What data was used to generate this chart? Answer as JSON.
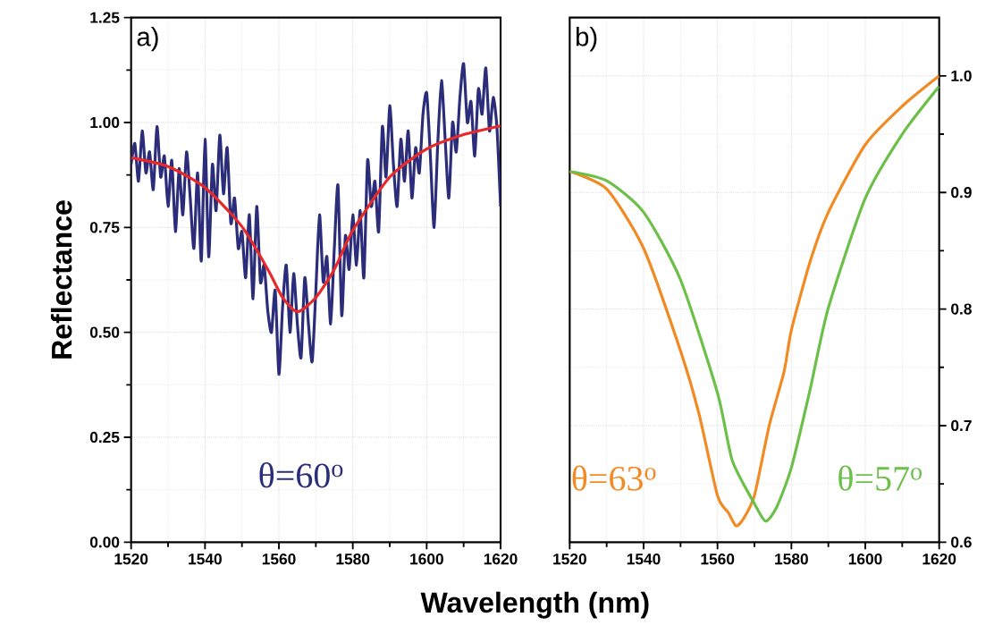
{
  "chart_data": [
    {
      "type": "line",
      "xlabel": "Wavelength (nm)",
      "ylabel": "Reflectance",
      "annotations": [
        "a)"
      ],
      "xlim": [
        1520,
        1620
      ],
      "xticks": [
        1520,
        1540,
        1560,
        1580,
        1600,
        1620
      ],
      "ylim": [
        0,
        1.25
      ],
      "yticks": [
        {
          "value": 0,
          "label": "0.00"
        },
        {
          "value": 0.25,
          "label": "0.25"
        },
        {
          "value": 0.5,
          "label": "0.50"
        },
        {
          "value": 0.75,
          "label": "0.75"
        },
        {
          "value": 1,
          "label": "1.00"
        },
        {
          "value": 1.25,
          "label": "1.25"
        }
      ],
      "grid": true,
      "marker": "none",
      "series": [
        {
          "name": "θ=60$^{o}$",
          "color": "#2b2d7a",
          "x": [
            1520,
            1521,
            1522,
            1523,
            1524,
            1525,
            1526,
            1527,
            1528,
            1529,
            1530,
            1531,
            1532,
            1533,
            1534,
            1535,
            1536,
            1537,
            1538,
            1539,
            1540,
            1541,
            1542,
            1543,
            1544,
            1545,
            1546,
            1547,
            1548,
            1549,
            1550,
            1551,
            1552,
            1553,
            1554,
            1555,
            1556,
            1557,
            1558,
            1559,
            1560,
            1561,
            1562,
            1563,
            1564,
            1565,
            1566,
            1567,
            1568,
            1569,
            1570,
            1571,
            1572,
            1573,
            1574,
            1575,
            1576,
            1577,
            1578,
            1579,
            1580,
            1581,
            1582,
            1583,
            1584,
            1585,
            1586,
            1587,
            1588,
            1589,
            1590,
            1591,
            1592,
            1593,
            1594,
            1595,
            1596,
            1597,
            1598,
            1599,
            1600,
            1601,
            1602,
            1603,
            1604,
            1605,
            1606,
            1607,
            1608,
            1609,
            1610,
            1611,
            1612,
            1613,
            1614,
            1615,
            1616,
            1617,
            1618,
            1619,
            1620
          ],
          "values": [
            0.9,
            0.95,
            0.86,
            0.98,
            0.88,
            0.93,
            0.84,
            0.99,
            0.87,
            0.92,
            0.8,
            0.91,
            0.74,
            0.89,
            0.78,
            0.93,
            0.82,
            0.7,
            0.88,
            0.67,
            0.96,
            0.68,
            0.9,
            0.79,
            0.97,
            0.83,
            0.94,
            0.76,
            0.82,
            0.7,
            0.74,
            0.63,
            0.78,
            0.58,
            0.8,
            0.62,
            0.66,
            0.55,
            0.5,
            0.6,
            0.4,
            0.56,
            0.66,
            0.5,
            0.64,
            0.52,
            0.44,
            0.63,
            0.52,
            0.43,
            0.6,
            0.78,
            0.62,
            0.68,
            0.52,
            0.7,
            0.85,
            0.54,
            0.73,
            0.65,
            0.78,
            0.66,
            0.79,
            0.63,
            0.91,
            0.8,
            0.86,
            0.74,
            0.99,
            0.87,
            1.04,
            0.9,
            0.8,
            0.96,
            0.86,
            0.98,
            0.82,
            0.94,
            0.88,
            1.02,
            1.07,
            0.92,
            0.75,
            0.95,
            1.1,
            0.96,
            0.82,
            1.0,
            0.93,
            1.06,
            1.14,
            1.0,
            1.05,
            0.92,
            1.08,
            1.02,
            1.13,
            0.98,
            1.06,
            0.99,
            0.8
          ]
        },
        {
          "color": "#e8292a",
          "x": [
            1520,
            1530,
            1540,
            1550,
            1557,
            1561,
            1565,
            1570,
            1575,
            1580,
            1590,
            1600,
            1610,
            1620
          ],
          "values": [
            0.916,
            0.895,
            0.845,
            0.752,
            0.65,
            0.583,
            0.549,
            0.583,
            0.65,
            0.743,
            0.87,
            0.937,
            0.971,
            0.992
          ]
        }
      ]
    },
    {
      "type": "line",
      "annotations": [
        "b)"
      ],
      "xlim": [
        1520,
        1620
      ],
      "xticks": [
        1520,
        1540,
        1560,
        1580,
        1600,
        1620
      ],
      "ylim": [
        0.6,
        1.05
      ],
      "yticks": [
        {
          "value": 0.6,
          "label": "0.6"
        },
        {
          "value": 0.7,
          "label": "0.7"
        },
        {
          "value": 0.8,
          "label": "0.8"
        },
        {
          "value": 0.9,
          "label": "0.9"
        },
        {
          "value": 1.0,
          "label": "1.0"
        }
      ],
      "grid": true,
      "marker": "none",
      "series": [
        {
          "name": "θ=63$^{o}$",
          "color": "#f28a24",
          "x": [
            1520,
            1530,
            1540,
            1550,
            1555,
            1560,
            1563,
            1565,
            1567,
            1570,
            1574,
            1578,
            1580,
            1585,
            1590,
            1600,
            1610,
            1620
          ],
          "values": [
            0.918,
            0.903,
            0.852,
            0.764,
            0.71,
            0.64,
            0.625,
            0.614,
            0.62,
            0.64,
            0.7,
            0.746,
            0.782,
            0.84,
            0.883,
            0.941,
            0.974,
            1.0
          ]
        },
        {
          "name": "θ=57$^{o}$",
          "color": "#6cc04a",
          "x": [
            1520,
            1530,
            1540,
            1550,
            1560,
            1564,
            1570,
            1573,
            1576,
            1580,
            1585,
            1590,
            1600,
            1610,
            1620
          ],
          "values": [
            0.918,
            0.91,
            0.883,
            0.825,
            0.728,
            0.67,
            0.633,
            0.618,
            0.63,
            0.664,
            0.73,
            0.801,
            0.895,
            0.95,
            0.991
          ]
        }
      ]
    }
  ]
}
